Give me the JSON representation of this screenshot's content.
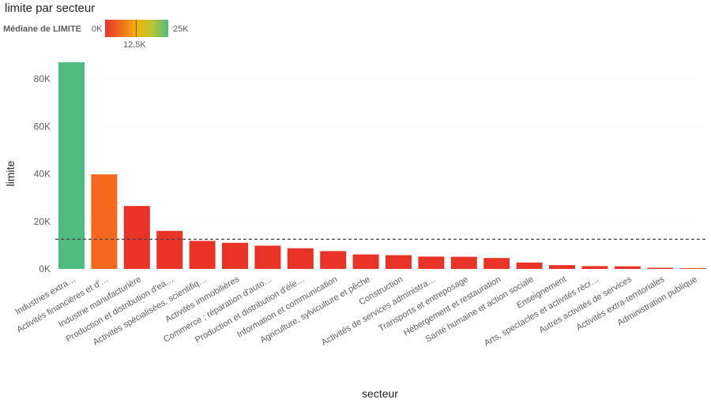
{
  "chart_data": {
    "type": "bar",
    "title": "limite par secteur",
    "xlabel": "secteur",
    "ylabel": "limite",
    "ylim": [
      0,
      90000
    ],
    "yticks": [
      0,
      20000,
      40000,
      60000,
      80000
    ],
    "ytick_labels": [
      "0K",
      "20K",
      "40K",
      "60K",
      "80K"
    ],
    "grid": true,
    "reference_line": {
      "value": 12500,
      "style": "dashed"
    },
    "legend": {
      "title": "Médiane de LIMITE",
      "min_label": "0K",
      "mid_label": "12,5K",
      "max_label": "25K",
      "placement": "top-left"
    },
    "categories": [
      "Industries extra…",
      "Activités financières et d'…",
      "Industrie manufacturière",
      "Production et distribution d'ea…",
      "Activités spécialisées, scientifiq…",
      "Activités immobilières",
      "Commerce ; réparation d'auto…",
      "Production et distribution d'éle…",
      "Information et communication",
      "Agriculture, sylviculture et pêche",
      "Construction",
      "Activités de services administra…",
      "Transports et entreposage",
      "Hébergement et restauration",
      "Santé humaine et action sociale",
      "Enseignement",
      "Arts, spectacles et activités récr…",
      "Autres activités de services",
      "Activités extra-territoriales",
      "Administration publique"
    ],
    "values": [
      87000,
      39800,
      26500,
      16000,
      11800,
      11000,
      9800,
      8700,
      7500,
      6100,
      5800,
      5200,
      5100,
      4600,
      2700,
      1600,
      1200,
      1100,
      500,
      300
    ],
    "colors": [
      "#4ebc7e",
      "#f5691f",
      "#ea3327",
      "#ea3327",
      "#ea3327",
      "#ea3327",
      "#ea3327",
      "#ea3327",
      "#ea3327",
      "#ea3327",
      "#ea3327",
      "#ea3327",
      "#ea3327",
      "#ea3327",
      "#ea3327",
      "#ea3327",
      "#ea3327",
      "#ea3327",
      "#ea3327",
      "#ea3327"
    ]
  }
}
